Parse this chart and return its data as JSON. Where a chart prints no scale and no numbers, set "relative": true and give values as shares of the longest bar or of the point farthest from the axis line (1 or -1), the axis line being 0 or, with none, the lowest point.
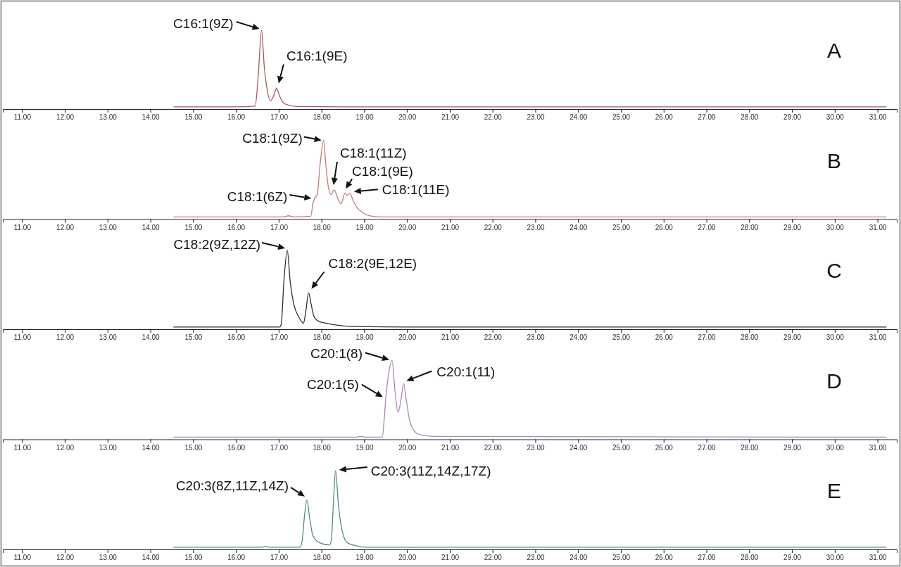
{
  "chart_data": [
    {
      "type": "line",
      "relative": true,
      "xlim": [
        10.55,
        31.45
      ],
      "tick_labels": "x",
      "xticks": [
        {
          "value": 11,
          "label": "11.00"
        },
        {
          "value": 12,
          "label": "12.00"
        },
        {
          "value": 13,
          "label": "13.00"
        },
        {
          "value": 14,
          "label": "14.00"
        },
        {
          "value": 15,
          "label": "15.00"
        },
        {
          "value": 16,
          "label": "16.00"
        },
        {
          "value": 17,
          "label": "17.00"
        },
        {
          "value": 18,
          "label": "18.00"
        },
        {
          "value": 19,
          "label": "19.00"
        },
        {
          "value": 20,
          "label": "20.00"
        },
        {
          "value": 21,
          "label": "21.00"
        },
        {
          "value": 22,
          "label": "22.00"
        },
        {
          "value": 23,
          "label": "23.00"
        },
        {
          "value": 24,
          "label": "24.00"
        },
        {
          "value": 25,
          "label": "25.00"
        },
        {
          "value": 26,
          "label": "26.00"
        },
        {
          "value": 27,
          "label": "27.00"
        },
        {
          "value": 28,
          "label": "28.00"
        },
        {
          "value": 29,
          "label": "29.00"
        },
        {
          "value": 30,
          "label": "30.00"
        },
        {
          "value": 31,
          "label": "31.00"
        }
      ],
      "series": [
        {
          "color": "#a55a5a",
          "x": [
            14.55,
            16.0,
            16.45,
            16.52,
            16.6,
            16.66,
            16.74,
            16.81,
            16.88,
            16.95,
            17.02,
            17.1,
            17.18,
            17.44,
            18.5,
            31.2
          ],
          "values": [
            0.01,
            0.01,
            0.02,
            0.4,
            1,
            0.55,
            0.2,
            0.09,
            0.15,
            0.25,
            0.15,
            0.07,
            0.04,
            0.015,
            0.01,
            0.01
          ]
        }
      ],
      "annotations": [
        {
          "text": "C16:1(9Z)",
          "x": 16.6,
          "y": 1
        },
        {
          "text": "C16:1(9E)",
          "x": 16.95,
          "y": 0.25
        },
        "A"
      ]
    },
    {
      "type": "line",
      "relative": true,
      "xlim": [
        10.55,
        31.45
      ],
      "tick_labels": "x",
      "xticks": [
        {
          "value": 11,
          "label": "11.00"
        },
        {
          "value": 12,
          "label": "12.00"
        },
        {
          "value": 13,
          "label": "13.00"
        },
        {
          "value": 14,
          "label": "14.00"
        },
        {
          "value": 15,
          "label": "15.00"
        },
        {
          "value": 16,
          "label": "16.00"
        },
        {
          "value": 17,
          "label": "17.00"
        },
        {
          "value": 18,
          "label": "18.00"
        },
        {
          "value": 19,
          "label": "19.00"
        },
        {
          "value": 20,
          "label": "20.00"
        },
        {
          "value": 21,
          "label": "21.00"
        },
        {
          "value": 22,
          "label": "22.00"
        },
        {
          "value": 23,
          "label": "23.00"
        },
        {
          "value": 24,
          "label": "24.00"
        },
        {
          "value": 25,
          "label": "25.00"
        },
        {
          "value": 26,
          "label": "26.00"
        },
        {
          "value": 27,
          "label": "27.00"
        },
        {
          "value": 28,
          "label": "28.00"
        },
        {
          "value": 29,
          "label": "29.00"
        },
        {
          "value": 30,
          "label": "30.00"
        },
        {
          "value": 31,
          "label": "31.00"
        }
      ],
      "series": [
        {
          "color": "#c87878",
          "x": [
            14.55,
            17.1,
            17.23,
            17.35,
            17.75,
            17.8,
            17.83,
            17.9,
            17.97,
            18.05,
            18.1,
            18.16,
            18.22,
            18.3,
            18.38,
            18.46,
            18.55,
            18.6,
            18.66,
            18.74,
            18.82,
            18.95,
            19.09,
            19.37,
            31.2
          ],
          "values": [
            0.01,
            0.01,
            0.025,
            0.01,
            0.02,
            0.18,
            0.24,
            0.3,
            0.7,
            1,
            0.7,
            0.4,
            0.3,
            0.36,
            0.25,
            0.18,
            0.32,
            0.29,
            0.32,
            0.22,
            0.14,
            0.07,
            0.03,
            0.01,
            0.01
          ]
        }
      ],
      "annotations": [
        {
          "text": "C18:1(9Z)",
          "x": 18.05,
          "y": 1
        },
        {
          "text": "C18:1(11Z)",
          "x": 18.3,
          "y": 0.36
        },
        {
          "text": "C18:1(9E)",
          "x": 18.55,
          "y": 0.32
        },
        {
          "text": "C18:1(11E)",
          "x": 18.66,
          "y": 0.32
        },
        {
          "text": "C18:1(6Z)",
          "x": 17.83,
          "y": 0.24
        },
        "B"
      ]
    },
    {
      "type": "line",
      "relative": true,
      "xlim": [
        10.55,
        31.45
      ],
      "tick_labels": "x",
      "xticks": [
        {
          "value": 11,
          "label": "11.00"
        },
        {
          "value": 12,
          "label": "12.00"
        },
        {
          "value": 13,
          "label": "13.00"
        },
        {
          "value": 14,
          "label": "14.00"
        },
        {
          "value": 15,
          "label": "15.00"
        },
        {
          "value": 16,
          "label": "16.00"
        },
        {
          "value": 17,
          "label": "17.00"
        },
        {
          "value": 18,
          "label": "18.00"
        },
        {
          "value": 19,
          "label": "19.00"
        },
        {
          "value": 20,
          "label": "20.00"
        },
        {
          "value": 21,
          "label": "21.00"
        },
        {
          "value": 22,
          "label": "22.00"
        },
        {
          "value": 23,
          "label": "23.00"
        },
        {
          "value": 24,
          "label": "24.00"
        },
        {
          "value": 25,
          "label": "25.00"
        },
        {
          "value": 26,
          "label": "26.00"
        },
        {
          "value": 27,
          "label": "27.00"
        },
        {
          "value": 28,
          "label": "28.00"
        },
        {
          "value": 29,
          "label": "29.00"
        },
        {
          "value": 30,
          "label": "30.00"
        },
        {
          "value": 31,
          "label": "31.00"
        }
      ],
      "series": [
        {
          "color": "#303030",
          "x": [
            14.55,
            17.02,
            17.06,
            17.12,
            17.2,
            17.27,
            17.36,
            17.46,
            17.58,
            17.63,
            17.7,
            17.76,
            17.83,
            17.95,
            18.1,
            18.66,
            20.0,
            31.2
          ],
          "values": [
            0.01,
            0.01,
            0.05,
            0.59,
            1,
            0.59,
            0.29,
            0.15,
            0.06,
            0.2,
            0.45,
            0.3,
            0.14,
            0.08,
            0.06,
            0.02,
            0.01,
            0.01
          ]
        }
      ],
      "annotations": [
        {
          "text": "C18:2(9Z,12Z)",
          "x": 17.2,
          "y": 1
        },
        {
          "text": "C18:2(9E,12E)",
          "x": 17.7,
          "y": 0.45
        },
        "C"
      ]
    },
    {
      "type": "line",
      "relative": true,
      "xlim": [
        10.55,
        31.45
      ],
      "tick_labels": "x",
      "xticks": [
        {
          "value": 11,
          "label": "11.00"
        },
        {
          "value": 12,
          "label": "12.00"
        },
        {
          "value": 13,
          "label": "13.00"
        },
        {
          "value": 14,
          "label": "14.00"
        },
        {
          "value": 15,
          "label": "15.00"
        },
        {
          "value": 16,
          "label": "16.00"
        },
        {
          "value": 17,
          "label": "17.00"
        },
        {
          "value": 18,
          "label": "18.00"
        },
        {
          "value": 19,
          "label": "19.00"
        },
        {
          "value": 20,
          "label": "20.00"
        },
        {
          "value": 21,
          "label": "21.00"
        },
        {
          "value": 22,
          "label": "22.00"
        },
        {
          "value": 23,
          "label": "23.00"
        },
        {
          "value": 24,
          "label": "24.00"
        },
        {
          "value": 25,
          "label": "25.00"
        },
        {
          "value": 26,
          "label": "26.00"
        },
        {
          "value": 27,
          "label": "27.00"
        },
        {
          "value": 28,
          "label": "28.00"
        },
        {
          "value": 29,
          "label": "29.00"
        },
        {
          "value": 30,
          "label": "30.00"
        },
        {
          "value": 31,
          "label": "31.00"
        }
      ],
      "series": [
        {
          "color": "#a888bb",
          "x": [
            14.55,
            18.8,
            18.93,
            19.05,
            19.42,
            19.46,
            19.5,
            19.56,
            19.65,
            19.72,
            19.79,
            19.86,
            19.92,
            19.98,
            20.06,
            20.2,
            20.4,
            20.64,
            31.2
          ],
          "values": [
            0.01,
            0.01,
            0.02,
            0.01,
            0.01,
            0.2,
            0.49,
            0.79,
            1,
            0.6,
            0.33,
            0.5,
            0.7,
            0.5,
            0.23,
            0.07,
            0.03,
            0.02,
            0.01
          ]
        }
      ],
      "annotations": [
        {
          "text": "C20:1(8)",
          "x": 19.65,
          "y": 1
        },
        {
          "text": "C20:1(5)",
          "x": 19.5,
          "y": 0.49
        },
        {
          "text": "C20:1(11)",
          "x": 19.92,
          "y": 0.7
        },
        "D"
      ]
    },
    {
      "type": "line",
      "relative": true,
      "xlim": [
        10.55,
        31.45
      ],
      "tick_labels": "x",
      "xticks": [
        {
          "value": 11,
          "label": "11.00"
        },
        {
          "value": 12,
          "label": "12.00"
        },
        {
          "value": 13,
          "label": "13.00"
        },
        {
          "value": 14,
          "label": "14.00"
        },
        {
          "value": 15,
          "label": "15.00"
        },
        {
          "value": 16,
          "label": "16.00"
        },
        {
          "value": 17,
          "label": "17.00"
        },
        {
          "value": 18,
          "label": "18.00"
        },
        {
          "value": 19,
          "label": "19.00"
        },
        {
          "value": 20,
          "label": "20.00"
        },
        {
          "value": 21,
          "label": "21.00"
        },
        {
          "value": 22,
          "label": "22.00"
        },
        {
          "value": 23,
          "label": "23.00"
        },
        {
          "value": 24,
          "label": "24.00"
        },
        {
          "value": 25,
          "label": "25.00"
        },
        {
          "value": 26,
          "label": "26.00"
        },
        {
          "value": 27,
          "label": "27.00"
        },
        {
          "value": 28,
          "label": "28.00"
        },
        {
          "value": 29,
          "label": "29.00"
        },
        {
          "value": 30,
          "label": "30.00"
        },
        {
          "value": 31,
          "label": "31.00"
        }
      ],
      "series": [
        {
          "color": "#4f8f6f",
          "x": [
            14.55,
            16.6,
            16.68,
            16.8,
            17.5,
            17.55,
            17.6,
            17.66,
            17.72,
            17.8,
            17.95,
            18.19,
            18.23,
            18.28,
            18.33,
            18.39,
            18.46,
            18.6,
            18.8,
            19.09,
            31.2
          ],
          "values": [
            0.01,
            0.01,
            0.02,
            0.01,
            0.01,
            0.1,
            0.4,
            0.62,
            0.4,
            0.16,
            0.07,
            0.04,
            0.1,
            0.6,
            1,
            0.6,
            0.29,
            0.07,
            0.03,
            0.01,
            0.01
          ]
        }
      ],
      "annotations": [
        {
          "text": "C20:3(8Z,11Z,14Z)",
          "x": 17.66,
          "y": 0.62
        },
        {
          "text": "C20:3(11Z,14Z,17Z)",
          "x": 18.33,
          "y": 1
        },
        "E"
      ]
    }
  ]
}
